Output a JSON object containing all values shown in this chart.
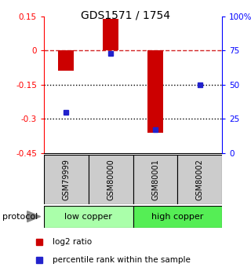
{
  "title": "GDS1571 / 1754",
  "samples": [
    "GSM79999",
    "GSM80000",
    "GSM80001",
    "GSM80002"
  ],
  "log2_ratio": [
    -0.09,
    0.14,
    -0.36,
    0.0
  ],
  "percentile_rank": [
    30,
    73,
    17,
    50
  ],
  "groups": [
    {
      "label": "low copper",
      "samples": [
        0,
        1
      ],
      "color": "#aaffaa"
    },
    {
      "label": "high copper",
      "samples": [
        2,
        3
      ],
      "color": "#55ee55"
    }
  ],
  "ylim_left": [
    -0.45,
    0.15
  ],
  "ylim_right": [
    0,
    100
  ],
  "left_ticks": [
    0.15,
    0.0,
    -0.15,
    -0.3,
    -0.45
  ],
  "left_tick_labels": [
    "0.15",
    "0",
    "-0.15",
    "-0.3",
    "-0.45"
  ],
  "right_ticks": [
    100,
    75,
    50,
    25,
    0
  ],
  "right_tick_labels": [
    "100%",
    "75",
    "50",
    "25",
    "0"
  ],
  "hlines_dotted": [
    -0.15,
    -0.3
  ],
  "hline_dashed": 0.0,
  "bar_color": "#cc0000",
  "dot_color": "#2222cc",
  "sample_box_color": "#cccccc",
  "background_color": "#ffffff",
  "legend_items": [
    {
      "label": "log2 ratio",
      "color": "#cc0000"
    },
    {
      "label": "percentile rank within the sample",
      "color": "#2222cc"
    }
  ],
  "bar_width": 0.35
}
